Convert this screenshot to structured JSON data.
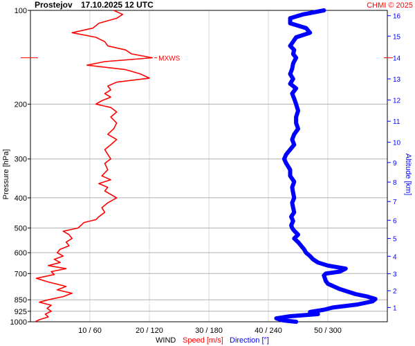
{
  "header": {
    "station": "Prostejov",
    "datetime": "17.10.2025 12 UTC",
    "credit": "CHMI © 2025"
  },
  "colors": {
    "speed": "#ff0000",
    "direction": "#0000ff",
    "grid": "#b0b0b0",
    "text": "#000000"
  },
  "chart_data": {
    "type": "line",
    "ylabel": "Pressure [hPa]",
    "y2label": "Altitude [km]",
    "xlabel_parts": {
      "prefix": "WIND",
      "speed": "Speed [m/s]",
      "direction": "Direction [°]"
    },
    "y_scale": "log",
    "ylim": [
      1000,
      100
    ],
    "pressure_ticks": [
      100,
      200,
      300,
      400,
      500,
      600,
      700,
      850,
      925,
      1000
    ],
    "x_ticks": [
      "10 / 60",
      "20 / 120",
      "30 / 180",
      "40 / 240",
      "50 / 300"
    ],
    "speed_range": [
      0,
      60
    ],
    "direction_range": [
      0,
      360
    ],
    "altitude_ticks": [
      {
        "km": 1,
        "p": 900
      },
      {
        "km": 2,
        "p": 795
      },
      {
        "km": 3,
        "p": 701
      },
      {
        "km": 4,
        "p": 616
      },
      {
        "km": 5,
        "p": 540
      },
      {
        "km": 6,
        "p": 472
      },
      {
        "km": 7,
        "p": 411
      },
      {
        "km": 8,
        "p": 356
      },
      {
        "km": 9,
        "p": 308
      },
      {
        "km": 10,
        "p": 265
      },
      {
        "km": 11,
        "p": 227
      },
      {
        "km": 12,
        "p": 194
      },
      {
        "km": 13,
        "p": 166
      },
      {
        "km": 14,
        "p": 142
      },
      {
        "km": 15,
        "p": 121
      },
      {
        "km": 16,
        "p": 104
      }
    ],
    "max_wind": {
      "label": "MXWS",
      "p": 142,
      "speed": 20.6
    },
    "series": [
      {
        "name": "Speed [m/s]",
        "pressure": [
          1000,
          985,
          965,
          945,
          925,
          905,
          885,
          865,
          850,
          830,
          810,
          790,
          770,
          745,
          725,
          705,
          690,
          675,
          660,
          645,
          630,
          615,
          600,
          585,
          570,
          555,
          540,
          525,
          512,
          500,
          490,
          480,
          470,
          460,
          445,
          430,
          415,
          400,
          390,
          380,
          370,
          360,
          350,
          340,
          325,
          310,
          300,
          290,
          280,
          270,
          260,
          250,
          240,
          230,
          220,
          212,
          205,
          200,
          195,
          190,
          185,
          180,
          175,
          170,
          165,
          160,
          155,
          150,
          146,
          142,
          138,
          134,
          130,
          126,
          122,
          118,
          114,
          110,
          106,
          103,
          100
        ],
        "speed": [
          0.8,
          1.5,
          3.0,
          2.5,
          3.5,
          2.8,
          3.5,
          1.5,
          3.0,
          5.5,
          7.0,
          4.5,
          6.0,
          3.0,
          1.0,
          4.0,
          3.5,
          6.0,
          3.0,
          5.0,
          4.0,
          5.5,
          4.5,
          5.0,
          6.5,
          6.0,
          7.0,
          6.5,
          5.5,
          8.0,
          8.5,
          9.0,
          11.0,
          11.5,
          12.5,
          12.0,
          13.0,
          14.5,
          13.5,
          12.5,
          13.0,
          11.5,
          13.5,
          12.0,
          13.0,
          12.5,
          13.5,
          13.0,
          12.5,
          13.5,
          14.5,
          13.0,
          14.0,
          14.5,
          13.5,
          14.5,
          13.5,
          11.0,
          12.0,
          13.5,
          12.5,
          13.5,
          13.0,
          14.5,
          20.0,
          18.5,
          16.0,
          9.5,
          12.5,
          20.5,
          17.0,
          16.0,
          13.0,
          12.5,
          11.0,
          7.0,
          10.5,
          11.5,
          14.5,
          15.5,
          14.0
        ]
      },
      {
        "name": "Direction [°]",
        "pressure": [
          1000,
          990,
          975,
          960,
          945,
          930,
          915,
          900,
          880,
          860,
          845,
          830,
          815,
          800,
          785,
          770,
          755,
          740,
          725,
          710,
          700,
          690,
          675,
          660,
          645,
          630,
          615,
          600,
          585,
          570,
          555,
          540,
          525,
          510,
          500,
          490,
          475,
          460,
          445,
          430,
          415,
          400,
          385,
          370,
          355,
          340,
          325,
          310,
          300,
          290,
          280,
          270,
          260,
          250,
          240,
          230,
          220,
          210,
          200,
          192,
          185,
          178,
          172,
          166,
          160,
          154,
          148,
          142,
          138,
          134,
          130,
          126,
          122,
          118,
          114,
          110,
          106,
          103,
          100
        ],
        "direction": [
          268,
          255,
          248,
          262,
          290,
          282,
          296,
          305,
          330,
          345,
          348,
          340,
          328,
          320,
          312,
          306,
          300,
          298,
          297,
          296,
          298,
          312,
          318,
          300,
          290,
          285,
          282,
          278,
          276,
          273,
          270,
          266,
          270,
          266,
          264,
          263,
          265,
          263,
          266,
          265,
          264,
          266,
          265,
          264,
          266,
          262,
          262,
          258,
          256,
          258,
          262,
          266,
          264,
          266,
          270,
          268,
          268,
          270,
          268,
          266,
          264,
          268,
          262,
          265,
          262,
          264,
          265,
          268,
          265,
          266,
          262,
          265,
          268,
          282,
          278,
          262,
          262,
          275,
          296
        ]
      }
    ]
  }
}
